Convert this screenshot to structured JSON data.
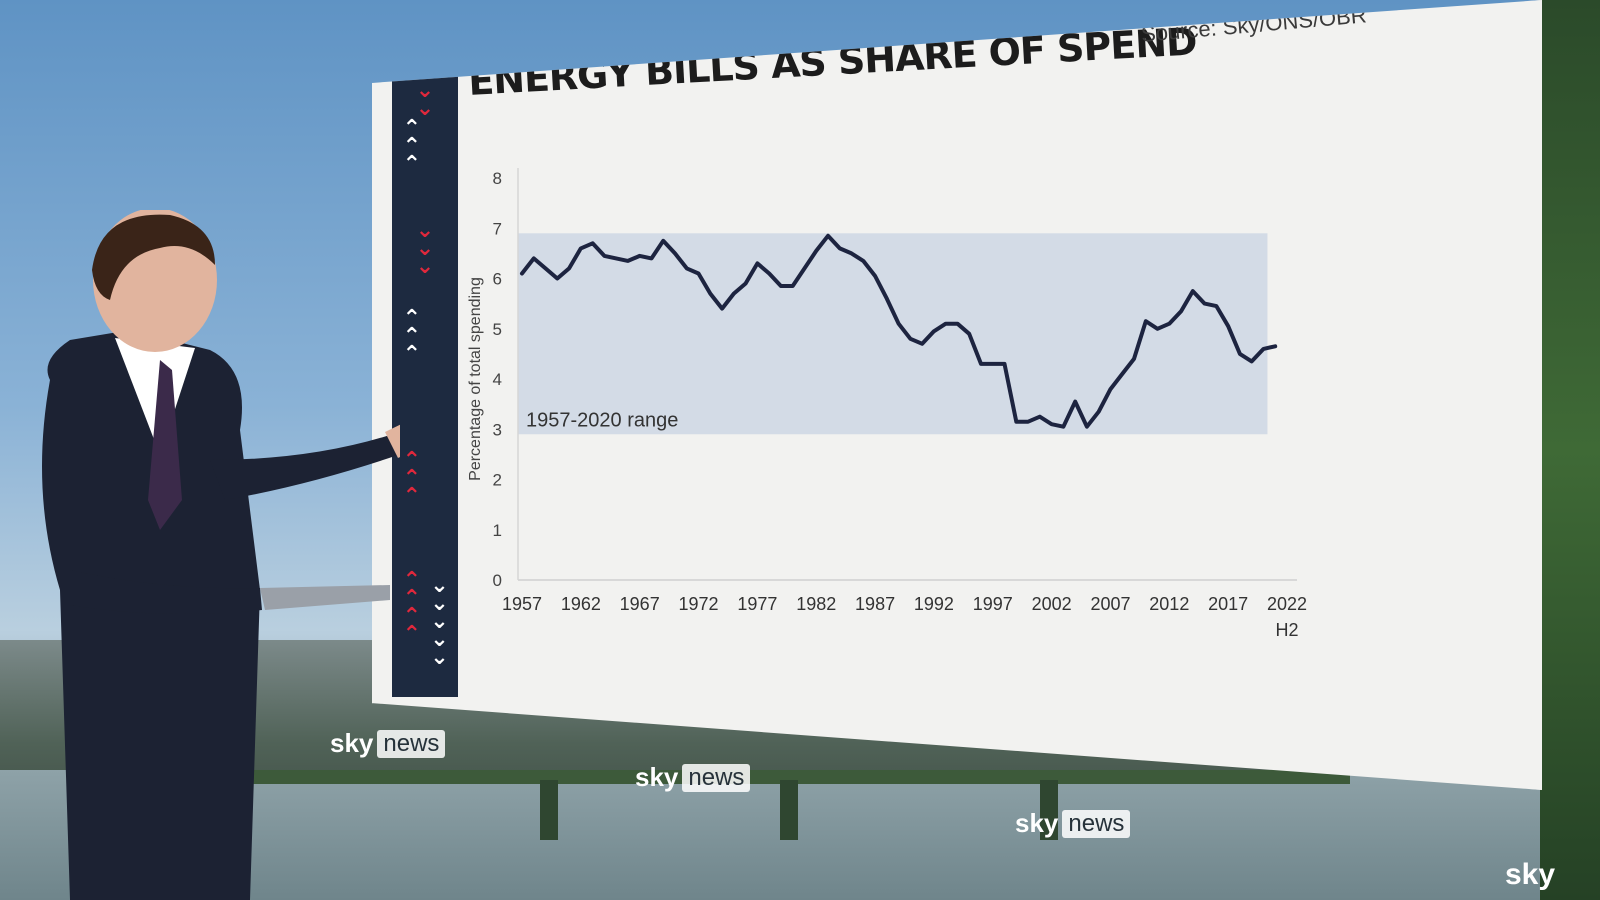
{
  "broadcast": {
    "watermark_brand": "sky",
    "watermark_word": "news",
    "corner_mark": "sky"
  },
  "colors": {
    "screen_bg": "#f2f2f0",
    "range_band": "#d3dbe6",
    "line": "#1d2440",
    "strip": "#1d2a40",
    "chevron_red": "#e0283c",
    "chevron_white": "#ffffff"
  },
  "chart_data": {
    "type": "line",
    "title": "ENERGY BILLS AS SHARE OF SPEND",
    "source": "Source: Sky/ONS/OBR",
    "ylabel": "Percentage of total spending",
    "xlabel": "",
    "ylim": [
      0,
      8
    ],
    "yticks": [
      "0",
      "1",
      "2",
      "3",
      "4",
      "5",
      "6",
      "7",
      "8"
    ],
    "xticks": [
      "1957",
      "1962",
      "1967",
      "1972",
      "1977",
      "1982",
      "1987",
      "1992",
      "1997",
      "2002",
      "2007",
      "2012",
      "2017",
      "2022"
    ],
    "xtick_sublabel": "H2",
    "grid": false,
    "band": {
      "label": "1957-2020 range",
      "low": 2.9,
      "high": 6.9
    },
    "series": [
      {
        "x": [
          1957,
          1958,
          1959,
          1960,
          1961,
          1962,
          1963,
          1964,
          1965,
          1966,
          1967,
          1968,
          1969,
          1970,
          1971,
          1972,
          1973,
          1974,
          1975,
          1976,
          1977,
          1978,
          1979,
          1980,
          1981,
          1982,
          1983,
          1984,
          1985,
          1986,
          1987,
          1988,
          1989,
          1990,
          1991,
          1992,
          1993,
          1994,
          1995,
          1996,
          1997,
          1998,
          1999,
          2000,
          2001,
          2002,
          2003,
          2004,
          2005,
          2006,
          2007,
          2008,
          2009,
          2010,
          2011,
          2012,
          2013,
          2014,
          2015,
          2016,
          2017,
          2018,
          2019,
          2020,
          2021
        ],
        "values": [
          6.1,
          6.4,
          6.2,
          6.0,
          6.2,
          6.6,
          6.7,
          6.45,
          6.4,
          6.35,
          6.45,
          6.4,
          6.75,
          6.5,
          6.2,
          6.1,
          5.7,
          5.4,
          5.7,
          5.9,
          6.3,
          6.1,
          5.85,
          5.85,
          6.2,
          6.55,
          6.85,
          6.6,
          6.5,
          6.35,
          6.05,
          5.6,
          5.1,
          4.8,
          4.7,
          4.95,
          5.1,
          5.1,
          4.9,
          4.3,
          4.3,
          4.3,
          3.15,
          3.15,
          3.25,
          3.1,
          3.05,
          3.55,
          3.05,
          3.35,
          3.8,
          4.1,
          4.4,
          5.15,
          5.0,
          5.1,
          5.35,
          5.75,
          5.5,
          5.45,
          5.05,
          4.5,
          4.35,
          4.6,
          4.65
        ]
      }
    ]
  }
}
